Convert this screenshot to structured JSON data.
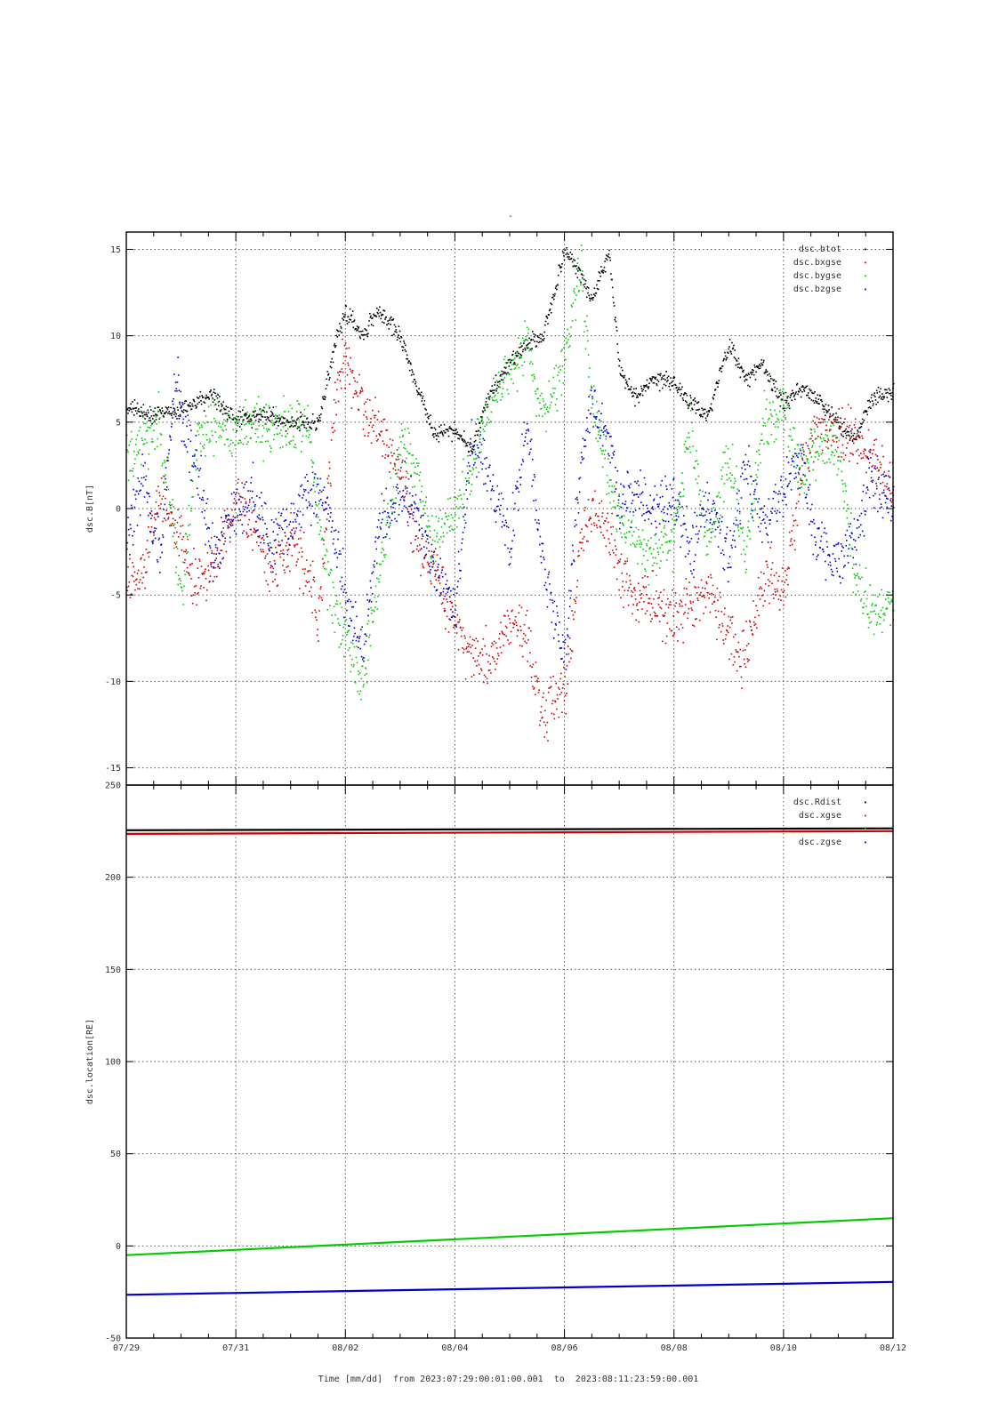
{
  "title_mark": "-",
  "time_caption": {
    "label": "Time [mm/dd]",
    "from_word": "from",
    "from_value": "2023:07:29:00:01:00.001",
    "to_word": "to",
    "to_value": "2023:08:11:23:59:00.001"
  },
  "chart_data": [
    {
      "type": "scatter",
      "ylabel": "dsc.B[nT]",
      "xlabel": "",
      "xlim": [
        "07/29",
        "08/12"
      ],
      "x_tick_labels": [],
      "ylim": [
        -16,
        16
      ],
      "y_ticks": [
        -15,
        -10,
        -5,
        0,
        5,
        10,
        15
      ],
      "grid": true,
      "legend_position": "top-right",
      "series": [
        {
          "name": "dsc.btot",
          "color": "#000000",
          "x_days": [
            0.0,
            0.5,
            1.0,
            1.5,
            2.0,
            2.5,
            3.0,
            3.5,
            3.8,
            4.0,
            4.3,
            4.6,
            5.0,
            5.3,
            5.6,
            6.0,
            6.3,
            6.6,
            7.0,
            7.3,
            7.6,
            8.0,
            8.3,
            8.5,
            8.8,
            9.0,
            9.3,
            9.6,
            10.0,
            10.3,
            10.6,
            11.0,
            11.3,
            11.6,
            12.0,
            12.3,
            12.6,
            13.0,
            13.3,
            13.6,
            14.0
          ],
          "values": [
            5.8,
            5.5,
            5.8,
            6.5,
            5.2,
            5.5,
            5.0,
            5.0,
            9.5,
            11.5,
            10.0,
            11.5,
            10.0,
            7.0,
            4.5,
            4.5,
            3.5,
            6.5,
            8.5,
            9.5,
            10.0,
            15.0,
            13.5,
            12.0,
            15.0,
            8.0,
            6.5,
            7.5,
            7.3,
            6.0,
            5.5,
            9.5,
            7.5,
            8.5,
            6.0,
            7.0,
            6.5,
            5.0,
            4.0,
            6.5,
            6.8
          ]
        },
        {
          "name": "dsc.bxgse",
          "color": "#cc0000",
          "x_days": [
            0.0,
            0.3,
            0.6,
            1.0,
            1.3,
            1.6,
            2.0,
            2.3,
            2.6,
            3.0,
            3.3,
            3.5,
            3.8,
            4.0,
            4.3,
            4.6,
            5.0,
            5.3,
            5.6,
            6.0,
            6.3,
            6.6,
            7.0,
            7.3,
            7.6,
            8.0,
            8.3,
            8.5,
            8.8,
            9.0,
            9.3,
            9.6,
            10.0,
            10.3,
            10.6,
            11.0,
            11.3,
            11.6,
            12.0,
            12.3,
            12.6,
            13.0,
            13.3,
            13.6,
            14.0
          ],
          "values": [
            -4.0,
            -3.5,
            1.0,
            -2.0,
            -4.5,
            -3.0,
            0.5,
            -1.0,
            -3.5,
            -2.0,
            -3.5,
            -6.0,
            6.0,
            9.0,
            5.5,
            5.0,
            2.0,
            -2.0,
            -3.5,
            -7.0,
            -8.5,
            -9.0,
            -6.5,
            -7.5,
            -12.0,
            -10.5,
            -2.0,
            0.0,
            -1.5,
            -3.5,
            -5.0,
            -5.5,
            -6.5,
            -5.5,
            -4.5,
            -7.5,
            -8.5,
            -4.0,
            -5.0,
            2.0,
            5.0,
            4.5,
            4.0,
            3.0,
            1.0
          ]
        },
        {
          "name": "dsc.bygse",
          "color": "#00cc00",
          "x_days": [
            0.0,
            0.3,
            0.6,
            1.0,
            1.3,
            1.6,
            2.0,
            2.3,
            2.6,
            3.0,
            3.3,
            3.6,
            3.8,
            4.0,
            4.3,
            4.6,
            5.0,
            5.3,
            5.6,
            6.0,
            6.3,
            6.6,
            7.0,
            7.3,
            7.6,
            8.0,
            8.3,
            8.5,
            8.8,
            9.0,
            9.3,
            9.6,
            10.0,
            10.3,
            10.6,
            11.0,
            11.3,
            11.6,
            12.0,
            12.3,
            12.6,
            13.0,
            13.3,
            13.6,
            14.0
          ],
          "values": [
            3.0,
            4.0,
            5.0,
            -5.0,
            4.5,
            5.0,
            4.5,
            5.0,
            4.5,
            5.0,
            5.0,
            -3.0,
            -6.0,
            -7.5,
            -10.0,
            -4.0,
            4.0,
            2.0,
            -2.0,
            0.0,
            2.0,
            6.0,
            8.0,
            10.0,
            5.0,
            9.0,
            14.0,
            6.0,
            2.0,
            -1.0,
            -2.0,
            -3.0,
            -1.5,
            5.0,
            -2.0,
            3.0,
            -3.0,
            5.0,
            6.0,
            2.0,
            4.0,
            3.0,
            -4.0,
            -6.0,
            -5.5
          ]
        },
        {
          "name": "dsc.bzgse",
          "color": "#0000cc",
          "x_days": [
            0.0,
            0.3,
            0.6,
            0.9,
            1.0,
            1.3,
            1.6,
            2.0,
            2.3,
            2.6,
            3.0,
            3.3,
            3.6,
            3.8,
            4.0,
            4.3,
            4.6,
            5.0,
            5.3,
            5.6,
            6.0,
            6.3,
            6.6,
            7.0,
            7.3,
            7.6,
            8.0,
            8.3,
            8.5,
            8.8,
            9.0,
            9.3,
            9.6,
            10.0,
            10.3,
            10.6,
            11.0,
            11.3,
            11.6,
            12.0,
            12.3,
            12.6,
            13.0,
            13.3,
            13.6,
            14.0
          ],
          "values": [
            -2.0,
            2.0,
            -3.0,
            8.0,
            5.0,
            2.0,
            -3.0,
            0.0,
            1.0,
            -2.0,
            -1.0,
            1.0,
            0.5,
            -2.0,
            -5.0,
            -8.0,
            -1.0,
            1.0,
            0.0,
            -3.0,
            -6.0,
            4.0,
            2.0,
            -2.0,
            5.0,
            -3.0,
            -9.0,
            3.0,
            6.0,
            4.0,
            0.0,
            1.0,
            0.0,
            0.5,
            -2.0,
            1.0,
            -3.0,
            3.0,
            -1.0,
            1.0,
            3.0,
            -2.0,
            -3.0,
            -2.0,
            2.0,
            0.0
          ]
        }
      ]
    },
    {
      "type": "line",
      "ylabel": "dsc.location[RE]",
      "xlabel": "",
      "xlim": [
        "07/29",
        "08/12"
      ],
      "x_tick_labels": [
        "07/29",
        "07/31",
        "08/02",
        "08/04",
        "08/06",
        "08/08",
        "08/10",
        "08/12"
      ],
      "ylim": [
        -50,
        250
      ],
      "y_ticks": [
        -50,
        0,
        50,
        100,
        150,
        200,
        250
      ],
      "grid": true,
      "legend_position": "top-right",
      "series": [
        {
          "name": "dsc.Rdist",
          "color": "#000000",
          "x_days": [
            0,
            14
          ],
          "values": [
            225.5,
            226.5
          ]
        },
        {
          "name": "dsc.xgse",
          "color": "#cc0000",
          "x_days": [
            0,
            14
          ],
          "values": [
            223.5,
            225.0
          ]
        },
        {
          "name": "",
          "color": "#00cc00",
          "x_days": [
            0,
            14
          ],
          "values": [
            -5.0,
            15.0
          ]
        },
        {
          "name": "dsc.zgse",
          "color": "#0000cc",
          "x_days": [
            0,
            14
          ],
          "values": [
            -26.5,
            -19.5
          ]
        }
      ]
    }
  ]
}
